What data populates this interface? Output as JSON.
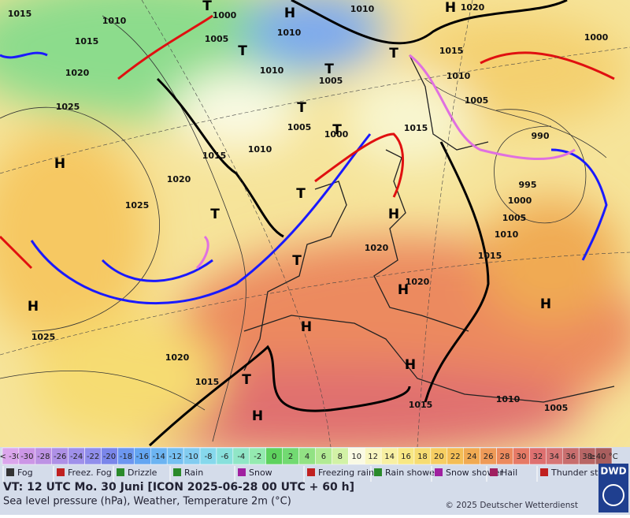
{
  "map": {
    "isobar_labels": [
      "1015",
      "1010",
      "1000",
      "1010",
      "1020",
      "1015",
      "1005",
      "1010",
      "1000",
      "1020",
      "1010",
      "1005",
      "1015",
      "1010",
      "1025",
      "1005",
      "1005",
      "1000",
      "1015",
      "990",
      "1010",
      "1015",
      "1020",
      "995",
      "1025",
      "1000",
      "1005",
      "1010",
      "1020",
      "1015",
      "1020",
      "1025",
      "1020",
      "1015",
      "1015",
      "1010",
      "1005"
    ],
    "pressure_centers": [
      "H",
      "H",
      "T",
      "T",
      "T",
      "T",
      "T",
      "T",
      "H",
      "T",
      "T",
      "H",
      "T",
      "H",
      "H",
      "H",
      "H",
      "H",
      "T",
      "H"
    ]
  },
  "temperature_scale": {
    "labels": [
      "< -30",
      -30,
      -28,
      -26,
      -24,
      -22,
      -20,
      -18,
      -16,
      -14,
      -12,
      -10,
      -8,
      -6,
      -4,
      -2,
      0,
      2,
      4,
      6,
      8,
      10,
      12,
      14,
      16,
      18,
      20,
      22,
      24,
      26,
      28,
      30,
      32,
      34,
      36,
      38,
      "≥40 °C"
    ],
    "colors": [
      "#dba6ec",
      "#cc96e6",
      "#bd92e4",
      "#ae90e6",
      "#9f90ea",
      "#908eec",
      "#7a86ea",
      "#6c96f0",
      "#64a6f2",
      "#6cb4f2",
      "#76c0f2",
      "#82ccf0",
      "#86d8ec",
      "#88e0dc",
      "#90e6c6",
      "#94eab0",
      "#5ed25e",
      "#72da72",
      "#92e284",
      "#b2ea94",
      "#d2f2a6",
      "#fafae4",
      "#f8f6c0",
      "#f8f0a2",
      "#f8e884",
      "#f6dc72",
      "#f6ce62",
      "#f4be56",
      "#f0aa52",
      "#ee9a58",
      "#ec8a5e",
      "#e67a66",
      "#de7070",
      "#d67676",
      "#c86e6e",
      "#b86666",
      "#a85e5e"
    ]
  },
  "weather_legend": [
    "Fog",
    "Freez. Fog",
    "Drizzle",
    "Rain",
    "Snow",
    "Freezing rain",
    "Rain shower",
    "Snow shower",
    "Hail",
    "Thunder storm"
  ],
  "footer": {
    "valid_time": "VT: 12 UTC Mo.  30 Juni [ICON 2025-06-28  00 UTC + 60 h]",
    "description": "Sea level pressure (hPa), Weather, Temperature 2m (°C)",
    "copyright": "© 2025 Deutscher Wetterdienst",
    "logo": "DWD"
  }
}
